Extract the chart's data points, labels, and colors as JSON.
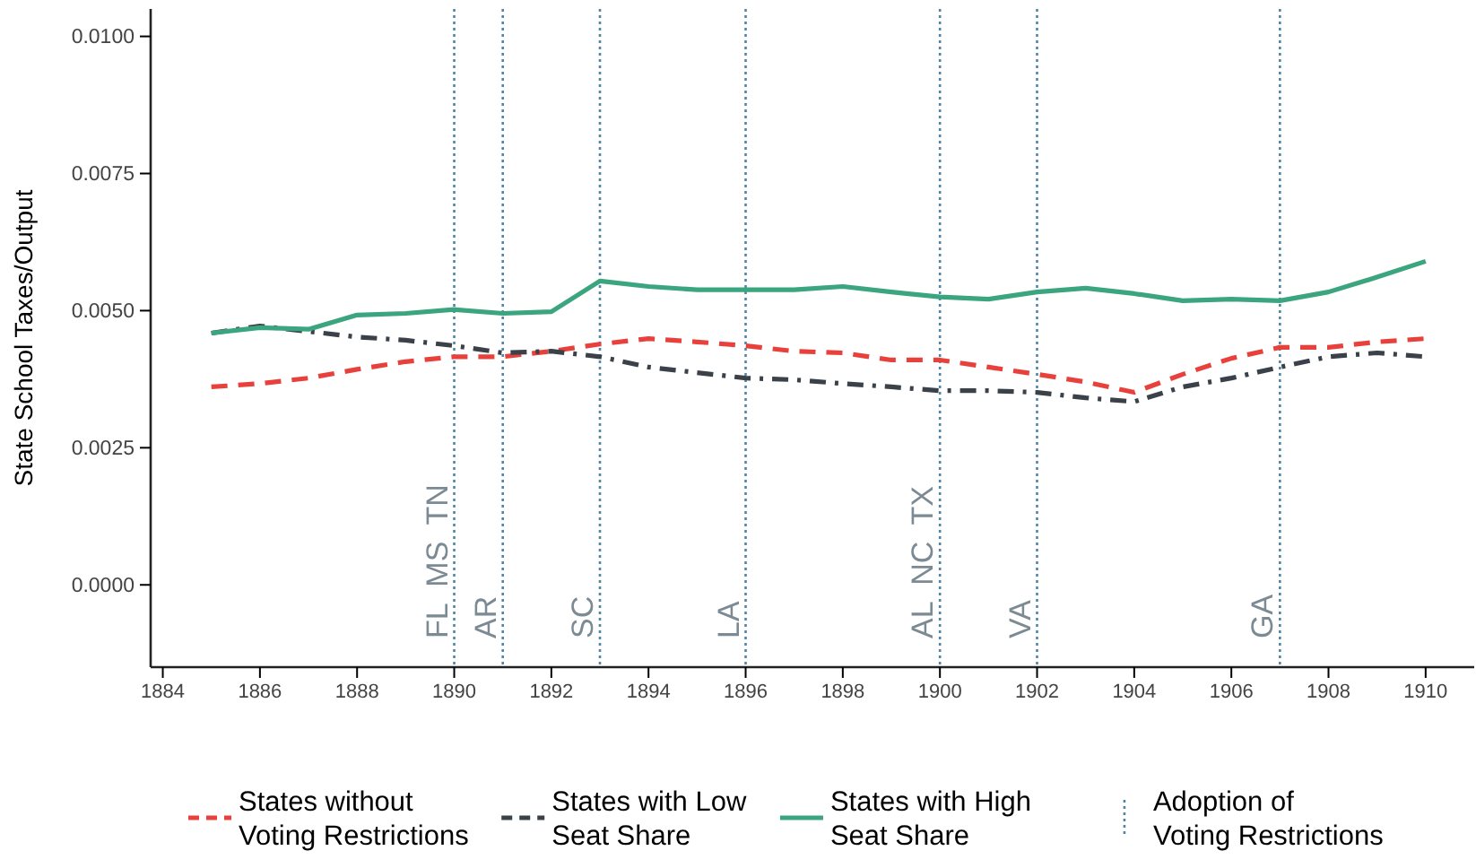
{
  "chart_data": {
    "type": "line",
    "ylabel": "State School Taxes/Output",
    "x": [
      1885,
      1886,
      1887,
      1888,
      1889,
      1890,
      1891,
      1892,
      1893,
      1894,
      1895,
      1896,
      1897,
      1898,
      1899,
      1900,
      1901,
      1902,
      1903,
      1904,
      1905,
      1906,
      1907,
      1908,
      1909,
      1910
    ],
    "series": [
      {
        "name": "States without Voting Restrictions",
        "color": "#e8413c",
        "line_style": "dashed",
        "values": [
          0.00361,
          0.00367,
          0.00377,
          0.00393,
          0.00407,
          0.00416,
          0.00416,
          0.00426,
          0.00439,
          0.00449,
          0.00443,
          0.00436,
          0.00426,
          0.00423,
          0.0041,
          0.0041,
          0.00397,
          0.00384,
          0.0037,
          0.00351,
          0.00384,
          0.00413,
          0.00433,
          0.00433,
          0.00443,
          0.00449
        ]
      },
      {
        "name": "States with Low Seat Share",
        "color": "#3a4149",
        "line_style": "dashdot",
        "values": [
          0.00459,
          0.00472,
          0.00462,
          0.00452,
          0.00446,
          0.00436,
          0.00423,
          0.00426,
          0.00416,
          0.00397,
          0.00387,
          0.00377,
          0.00374,
          0.00367,
          0.00361,
          0.00354,
          0.00354,
          0.00351,
          0.00341,
          0.00334,
          0.00361,
          0.00377,
          0.00397,
          0.00416,
          0.00423,
          0.00416
        ]
      },
      {
        "name": "States with High Seat Share",
        "color": "#3aa57e",
        "line_style": "solid",
        "values": [
          0.00459,
          0.00469,
          0.00466,
          0.00492,
          0.00495,
          0.00502,
          0.00495,
          0.00498,
          0.00554,
          0.00544,
          0.00538,
          0.00538,
          0.00538,
          0.00544,
          0.00534,
          0.00525,
          0.00521,
          0.00534,
          0.00541,
          0.00531,
          0.00518,
          0.00521,
          0.00518,
          0.00534,
          0.00561,
          0.0059
        ]
      }
    ],
    "xlim": [
      1883.75,
      1911
    ],
    "xticks": [
      1884,
      1886,
      1888,
      1890,
      1892,
      1894,
      1896,
      1898,
      1900,
      1902,
      1904,
      1906,
      1908,
      1910
    ],
    "ylim": [
      -0.0015,
      0.0105
    ],
    "yticks": [
      {
        "value": 0,
        "label": "0.0000"
      },
      {
        "value": 0.0025,
        "label": "0.0025"
      },
      {
        "value": 0.005,
        "label": "0.0050"
      },
      {
        "value": 0.0075,
        "label": "0.0075"
      },
      {
        "value": 0.01,
        "label": "0.0100"
      }
    ],
    "ref_lines": [
      {
        "axis": "x",
        "value": 1890,
        "label": "FL  MS  TN",
        "color": "#4f86a8",
        "line_style": "dotted"
      },
      {
        "axis": "x",
        "value": 1891,
        "label": "AR",
        "color": "#4f86a8",
        "line_style": "dotted"
      },
      {
        "axis": "x",
        "value": 1893,
        "label": "SC",
        "color": "#4f86a8",
        "line_style": "dotted"
      },
      {
        "axis": "x",
        "value": 1896,
        "label": "LA",
        "color": "#4f86a8",
        "line_style": "dotted"
      },
      {
        "axis": "x",
        "value": 1900,
        "label": "AL  NC  TX",
        "color": "#4f86a8",
        "line_style": "dotted"
      },
      {
        "axis": "x",
        "value": 1902,
        "label": "VA",
        "color": "#4f86a8",
        "line_style": "dotted"
      },
      {
        "axis": "x",
        "value": 1907,
        "label": "GA",
        "color": "#4f86a8",
        "line_style": "dotted"
      }
    ],
    "annotations": [
      "Adoption of Voting Restrictions"
    ],
    "grid": false,
    "legend": "bottom"
  }
}
